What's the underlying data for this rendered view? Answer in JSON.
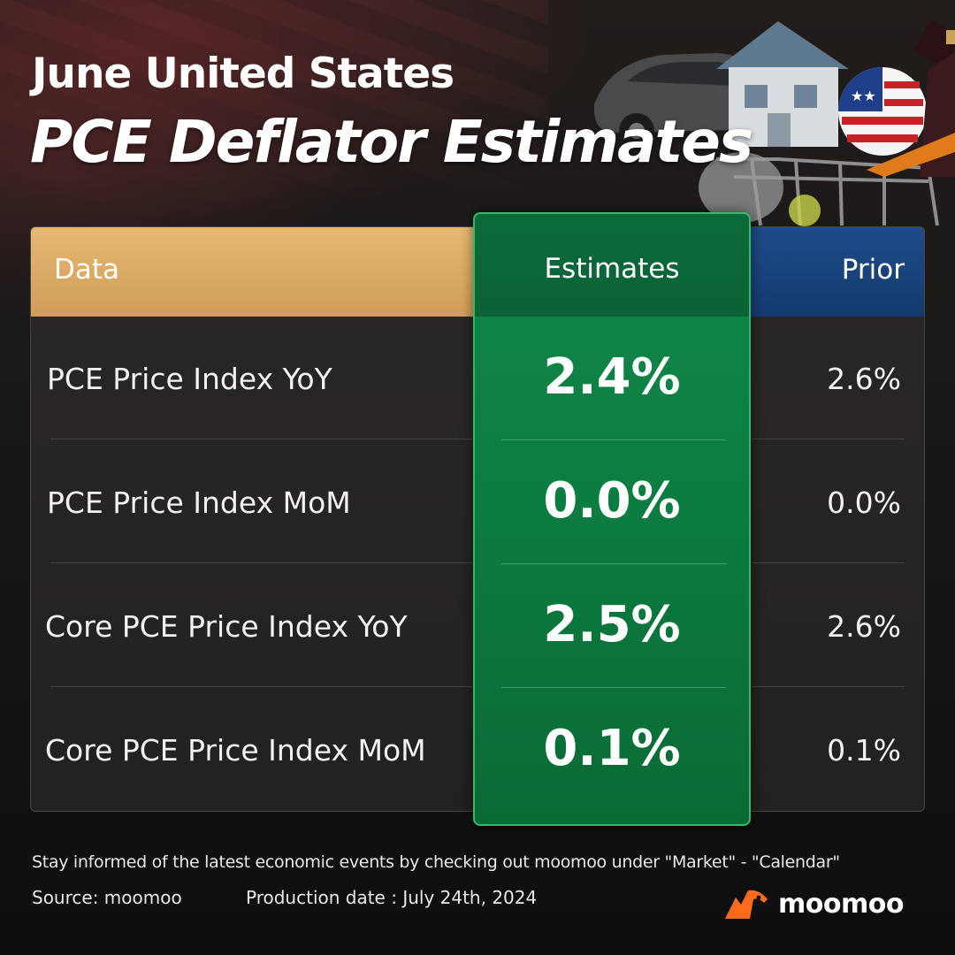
{
  "header": {
    "title_line1": "June United States",
    "title_line2": "PCE Deflator Estimates"
  },
  "table": {
    "columns": {
      "data": "Data",
      "estimates": "Estimates",
      "prior": "Prior"
    },
    "rows": [
      {
        "label": "PCE Price Index YoY",
        "estimate": "2.4%",
        "prior": "2.6%"
      },
      {
        "label": "PCE Price Index MoM",
        "estimate": "0.0%",
        "prior": "0.0%"
      },
      {
        "label": "Core PCE Price Index YoY",
        "estimate": "2.5%",
        "prior": "2.6%"
      },
      {
        "label": "Core PCE Price Index MoM",
        "estimate": "0.1%",
        "prior": "0.1%"
      }
    ]
  },
  "footer": {
    "note": "Stay informed of the latest economic events by checking out moomoo under \"Market\" - \"Calendar\"",
    "source": "Source: moomoo",
    "production_date": "Production date : July 24th, 2024",
    "brand": "moomoo"
  },
  "colors": {
    "data_header": "#d9a862",
    "estimates_column": "#0c7a3f",
    "prior_header": "#17437c",
    "brand_orange": "#ff6a1a"
  },
  "icons": [
    "moomoo-logo-icon",
    "house-illustration",
    "car-illustration",
    "wine-bottle-illustration",
    "us-flag-badge-icon",
    "shopping-cart-illustration"
  ]
}
